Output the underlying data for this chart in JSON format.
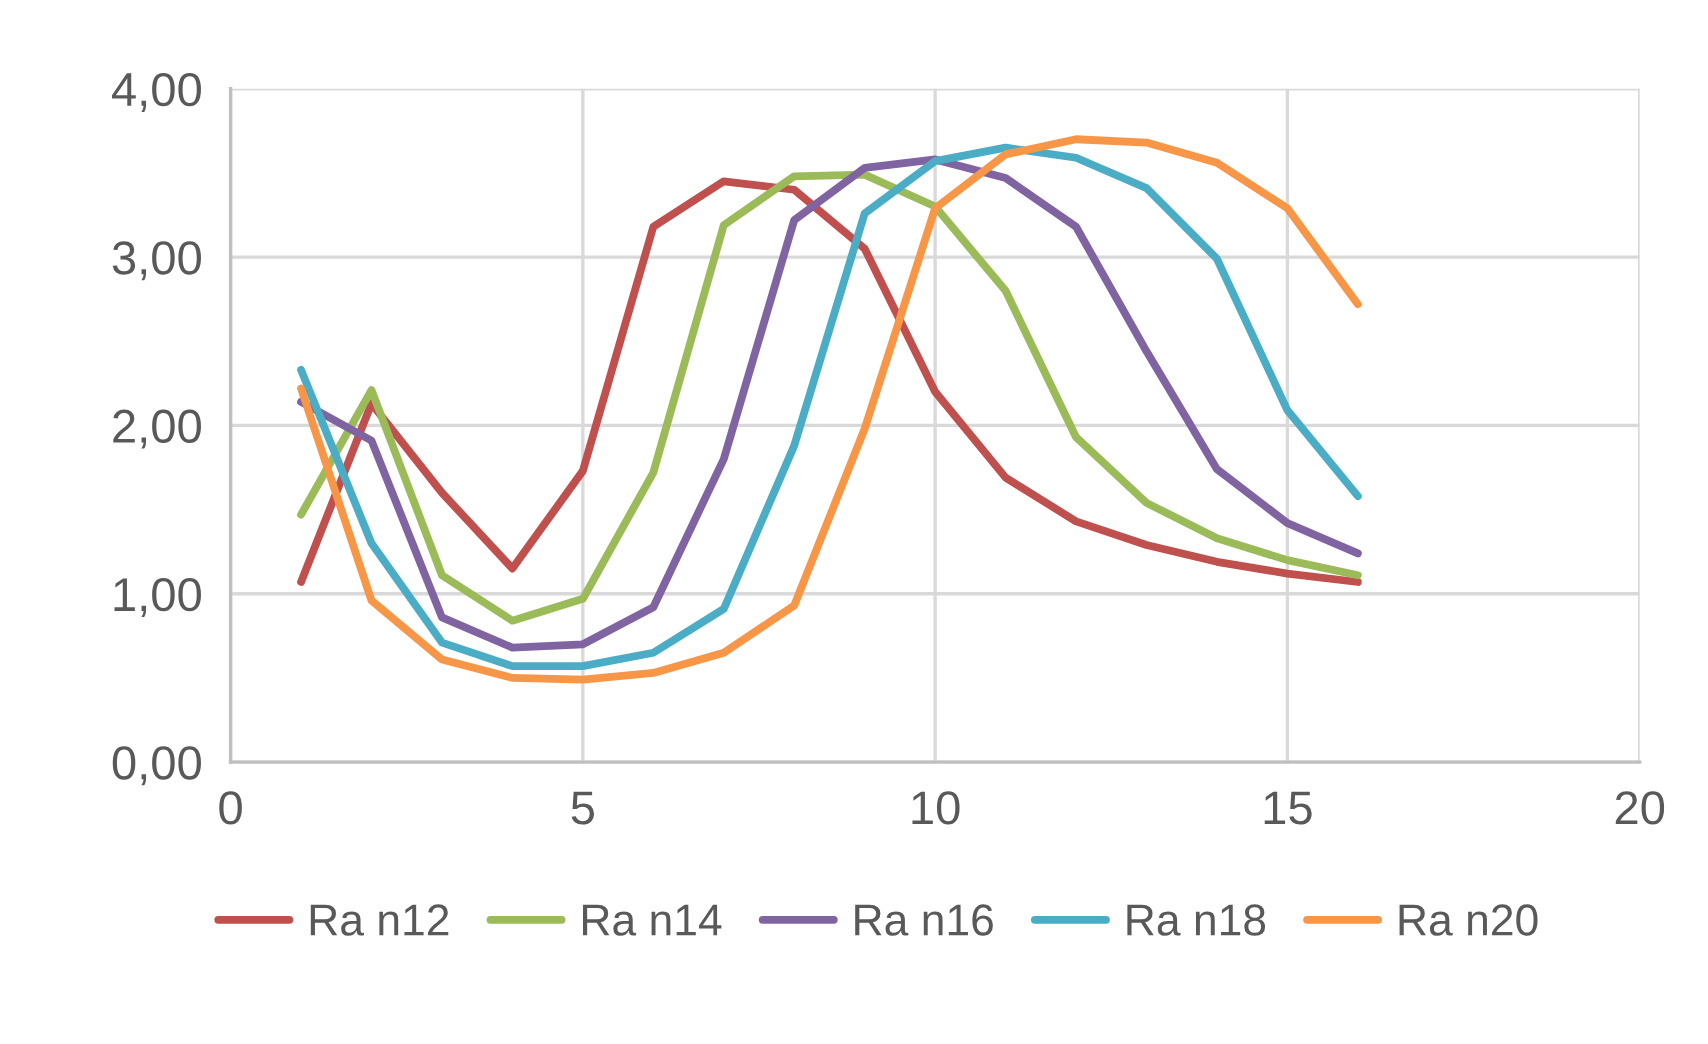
{
  "chart_data": {
    "type": "line",
    "x": [
      1,
      2,
      3,
      4,
      5,
      6,
      7,
      8,
      9,
      10,
      11,
      12,
      13,
      14,
      15,
      16
    ],
    "series": [
      {
        "name": "Ra n12",
        "color": "#c0504d",
        "values": [
          1.07,
          2.13,
          1.6,
          1.15,
          1.73,
          3.18,
          3.45,
          3.4,
          3.05,
          2.2,
          1.69,
          1.43,
          1.29,
          1.19,
          1.12,
          1.07
        ]
      },
      {
        "name": "Ra n14",
        "color": "#9bbb59",
        "values": [
          1.47,
          2.21,
          1.11,
          0.84,
          0.97,
          1.72,
          3.19,
          3.48,
          3.49,
          3.3,
          2.8,
          1.93,
          1.54,
          1.33,
          1.2,
          1.11
        ]
      },
      {
        "name": "Ra n16",
        "color": "#8064a2",
        "values": [
          2.14,
          1.91,
          0.86,
          0.68,
          0.7,
          0.92,
          1.8,
          3.22,
          3.53,
          3.58,
          3.47,
          3.18,
          2.44,
          1.74,
          1.42,
          1.24
        ]
      },
      {
        "name": "Ra n18",
        "color": "#4bacc6",
        "values": [
          2.33,
          1.3,
          0.71,
          0.57,
          0.57,
          0.65,
          0.91,
          1.88,
          3.26,
          3.57,
          3.65,
          3.59,
          3.41,
          2.99,
          2.09,
          1.58
        ]
      },
      {
        "name": "Ra n20",
        "color": "#f79646",
        "values": [
          2.22,
          0.96,
          0.61,
          0.5,
          0.49,
          0.53,
          0.65,
          0.93,
          1.98,
          3.29,
          3.61,
          3.7,
          3.68,
          3.56,
          3.29,
          2.72
        ]
      }
    ],
    "xlim": [
      0,
      20
    ],
    "xticks": [
      0,
      5,
      10,
      15,
      20
    ],
    "ylim": [
      0,
      4
    ],
    "yticks": [
      {
        "value": 0,
        "label": "0,00"
      },
      {
        "value": 1,
        "label": "1,00"
      },
      {
        "value": 2,
        "label": "2,00"
      },
      {
        "value": 3,
        "label": "3,00"
      },
      {
        "value": 4,
        "label": "4,00"
      }
    ],
    "grid": true,
    "legend": "bottom",
    "marker": "none",
    "line_style": "solid"
  }
}
